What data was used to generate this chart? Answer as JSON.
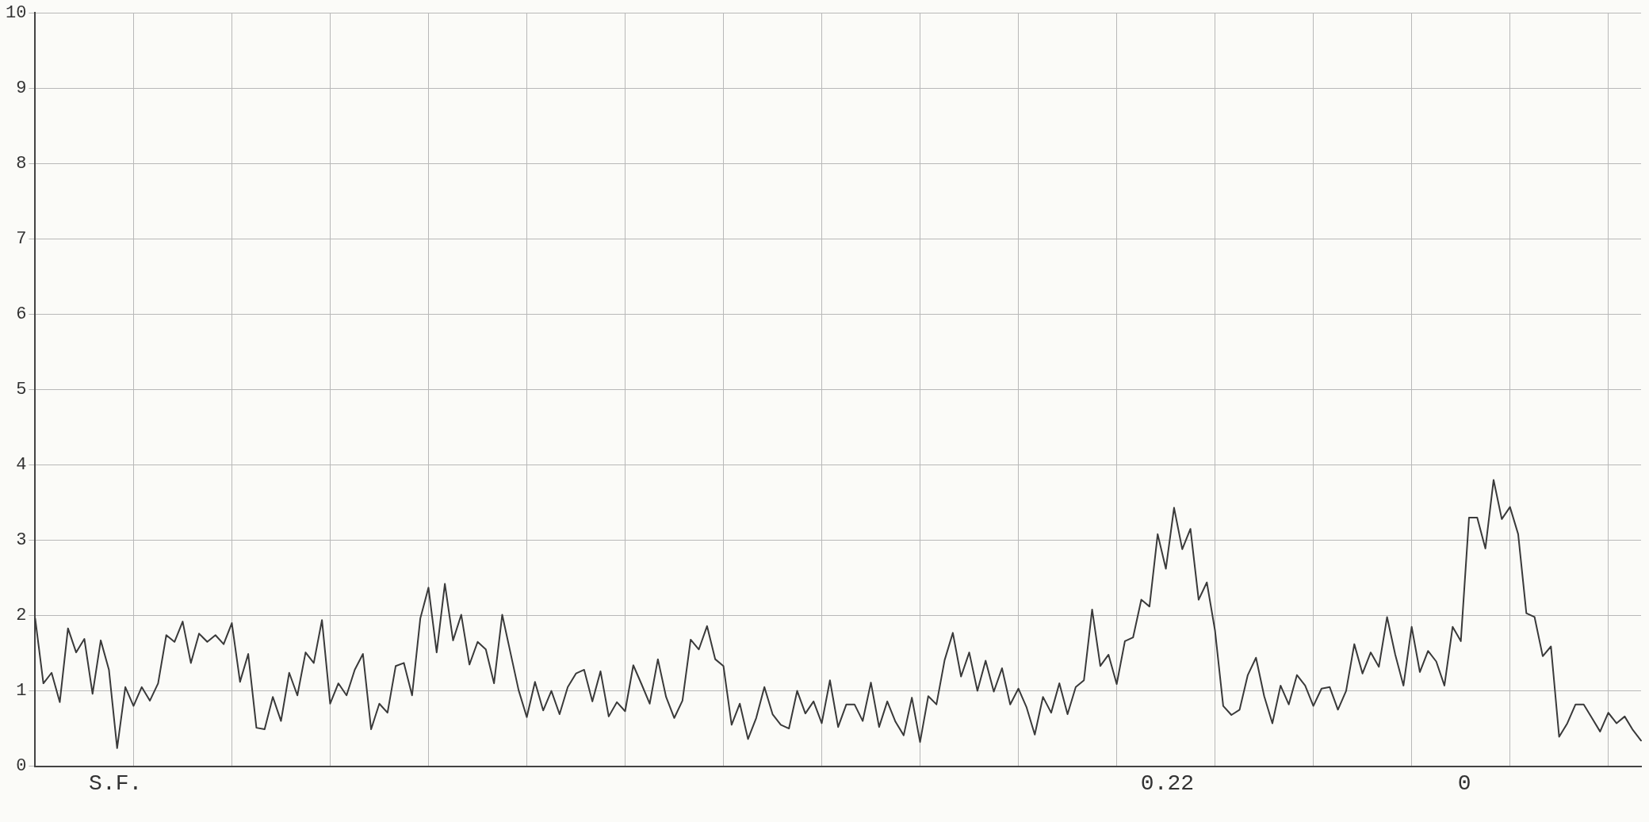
{
  "chart_data": {
    "type": "line",
    "categories": [
      null,
      null,
      null,
      null,
      null,
      null,
      null,
      null,
      null,
      null,
      null,
      null,
      null,
      null,
      null,
      null,
      null,
      null,
      null,
      null,
      null,
      null,
      null,
      null,
      null,
      null,
      null,
      null,
      null,
      null,
      null,
      null,
      null,
      null,
      null,
      null,
      null,
      null,
      null,
      null,
      null,
      null,
      null,
      null,
      null,
      null,
      null,
      null,
      null,
      null,
      null,
      null,
      null,
      null,
      null,
      null,
      null,
      null,
      null,
      null,
      null,
      null,
      null,
      null,
      null,
      null,
      null,
      null,
      null,
      null,
      null,
      null,
      null,
      null,
      null,
      null,
      null,
      null,
      null,
      null,
      null,
      null,
      null,
      null,
      null,
      null,
      null,
      null,
      null,
      null,
      null,
      null,
      null,
      null,
      null,
      null,
      null,
      null,
      null,
      null,
      null,
      null,
      null,
      null,
      null,
      null,
      null,
      null,
      null,
      null,
      null,
      null,
      null,
      null,
      null,
      null,
      null,
      null,
      null,
      null,
      null,
      null,
      null,
      null,
      null,
      null,
      null,
      null,
      null,
      null,
      null,
      null,
      null,
      null,
      null,
      null,
      null,
      null,
      null,
      null,
      null,
      null,
      null,
      null,
      null,
      null,
      null,
      null,
      null,
      null,
      null,
      null,
      null,
      null,
      null,
      null,
      null,
      null,
      null,
      null,
      null,
      null,
      null,
      null,
      null,
      null,
      null,
      null,
      null,
      null,
      null,
      null,
      null,
      null,
      null,
      null,
      null,
      null,
      null,
      null,
      null,
      null,
      null,
      null,
      null,
      null,
      null,
      null,
      null,
      null,
      null,
      null,
      null,
      null,
      null,
      null,
      null
    ],
    "series": [
      {
        "color": "#3a3a3a",
        "values": [
          1.96,
          1.1,
          1.24,
          0.85,
          1.83,
          1.51,
          1.69,
          0.96,
          1.67,
          1.28,
          0.24,
          1.05,
          0.8,
          1.05,
          0.87,
          1.1,
          1.74,
          1.65,
          1.92,
          1.37,
          1.76,
          1.65,
          1.74,
          1.62,
          1.9,
          1.12,
          1.49,
          0.51,
          0.49,
          0.92,
          0.6,
          1.24,
          0.94,
          1.51,
          1.37,
          1.94,
          0.83,
          1.1,
          0.94,
          1.28,
          1.49,
          0.49,
          0.83,
          0.71,
          1.33,
          1.37,
          0.94,
          1.96,
          2.37,
          1.51,
          2.42,
          1.67,
          2.01,
          1.35,
          1.65,
          1.55,
          1.1,
          2.01,
          1.51,
          1.01,
          0.65,
          1.12,
          0.74,
          1.0,
          0.69,
          1.05,
          1.23,
          1.28,
          0.86,
          1.26,
          0.66,
          0.85,
          0.73,
          1.34,
          1.09,
          0.83,
          1.42,
          0.92,
          0.64,
          0.87,
          1.68,
          1.55,
          1.86,
          1.42,
          1.33,
          0.55,
          0.83,
          0.36,
          0.64,
          1.05,
          0.69,
          0.55,
          0.5,
          1.0,
          0.7,
          0.86,
          0.57,
          1.14,
          0.52,
          0.82,
          0.82,
          0.6,
          1.11,
          0.52,
          0.86,
          0.59,
          0.41,
          0.91,
          0.32,
          0.93,
          0.82,
          1.41,
          1.77,
          1.19,
          1.51,
          1.0,
          1.4,
          0.99,
          1.3,
          0.82,
          1.03,
          0.78,
          0.42,
          0.92,
          0.71,
          1.1,
          0.69,
          1.05,
          1.14,
          2.08,
          1.33,
          1.48,
          1.09,
          1.66,
          1.71,
          2.21,
          2.12,
          3.08,
          2.62,
          3.43,
          2.88,
          3.15,
          2.21,
          2.44,
          1.8,
          0.8,
          0.68,
          0.75,
          1.21,
          1.44,
          0.93,
          0.57,
          1.07,
          0.82,
          1.21,
          1.07,
          0.8,
          1.03,
          1.05,
          0.75,
          1.0,
          1.62,
          1.23,
          1.51,
          1.32,
          1.98,
          1.48,
          1.07,
          1.85,
          1.25,
          1.53,
          1.39,
          1.07,
          1.85,
          1.66,
          3.3,
          3.3,
          2.89,
          3.8,
          3.28,
          3.44,
          3.08,
          2.03,
          1.98,
          1.46,
          1.59,
          0.39,
          0.57,
          0.82,
          0.82,
          0.64,
          0.46,
          0.71,
          0.57,
          0.66,
          0.48,
          0.34
        ]
      }
    ],
    "ylim": [
      0,
      10
    ],
    "yticks": [
      0,
      1,
      2,
      3,
      4,
      5,
      6,
      7,
      8,
      9,
      10
    ],
    "grid": true,
    "marker": "none",
    "line_style": "solid",
    "annotations": [
      "S.F.",
      "0.22",
      "0"
    ]
  }
}
